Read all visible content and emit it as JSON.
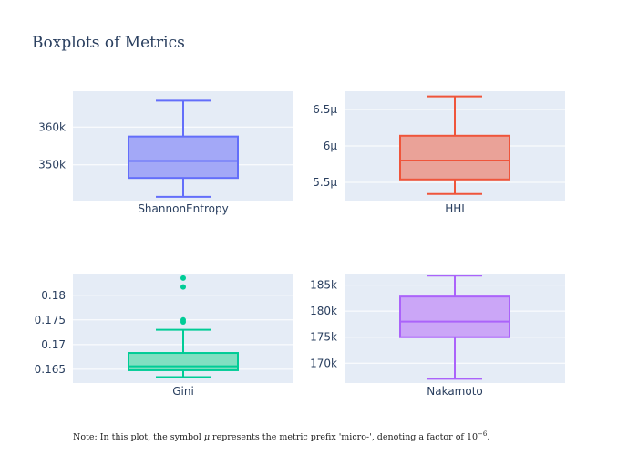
{
  "title": "Boxplots of Metrics",
  "note": {
    "prefix": "Note: In this plot, the symbol ",
    "symbol": "μ",
    "middle": " represents the metric prefix 'micro-', denoting a factor of 10",
    "exponent": "−6",
    "suffix": "."
  },
  "colors": {
    "plot_background": "#E5ECF6",
    "grid": "#ffffff",
    "text": "#2a3f5f"
  },
  "chart_data": [
    {
      "type": "box",
      "category": "ShannonEntropy",
      "color": "#636EFA",
      "fill": "#A3A8F7",
      "ylim": [
        340500,
        369500
      ],
      "ticks": [
        {
          "value": 350000,
          "label": "350k"
        },
        {
          "value": 360000,
          "label": "360k"
        }
      ],
      "min": 341500,
      "q1": 346500,
      "median": 351000,
      "q3": 357500,
      "max": 367000,
      "outliers": []
    },
    {
      "type": "box",
      "category": "HHI",
      "color": "#EF553B",
      "fill": "#EAA298",
      "ylim": [
        5.25e-06,
        6.75e-06
      ],
      "ticks": [
        {
          "value": 5.5e-06,
          "label": "5.5μ"
        },
        {
          "value": 6e-06,
          "label": "6μ"
        },
        {
          "value": 6.5e-06,
          "label": "6.5μ"
        }
      ],
      "min": 5.34e-06,
      "q1": 5.54e-06,
      "median": 5.8e-06,
      "q3": 6.14e-06,
      "max": 6.68e-06,
      "outliers": []
    },
    {
      "type": "box",
      "category": "Gini",
      "color": "#00CC96",
      "fill": "#80DFC1",
      "ylim": [
        0.1622,
        0.1844
      ],
      "ticks": [
        {
          "value": 0.165,
          "label": "0.165"
        },
        {
          "value": 0.17,
          "label": "0.17"
        },
        {
          "value": 0.175,
          "label": "0.175"
        },
        {
          "value": 0.18,
          "label": "0.18"
        }
      ],
      "min": 0.1634,
      "q1": 0.1648,
      "median": 0.1656,
      "q3": 0.1683,
      "max": 0.173,
      "outliers": [
        0.1746,
        0.175,
        0.1817,
        0.1835
      ]
    },
    {
      "type": "box",
      "category": "Nakamoto",
      "color": "#AB63FA",
      "fill": "#CBA6F7",
      "ylim": [
        166200,
        187200
      ],
      "ticks": [
        {
          "value": 170000,
          "label": "170k"
        },
        {
          "value": 175000,
          "label": "175k"
        },
        {
          "value": 180000,
          "label": "180k"
        },
        {
          "value": 185000,
          "label": "185k"
        }
      ],
      "min": 167000,
      "q1": 175000,
      "median": 178000,
      "q3": 182800,
      "max": 186800,
      "outliers": []
    }
  ]
}
